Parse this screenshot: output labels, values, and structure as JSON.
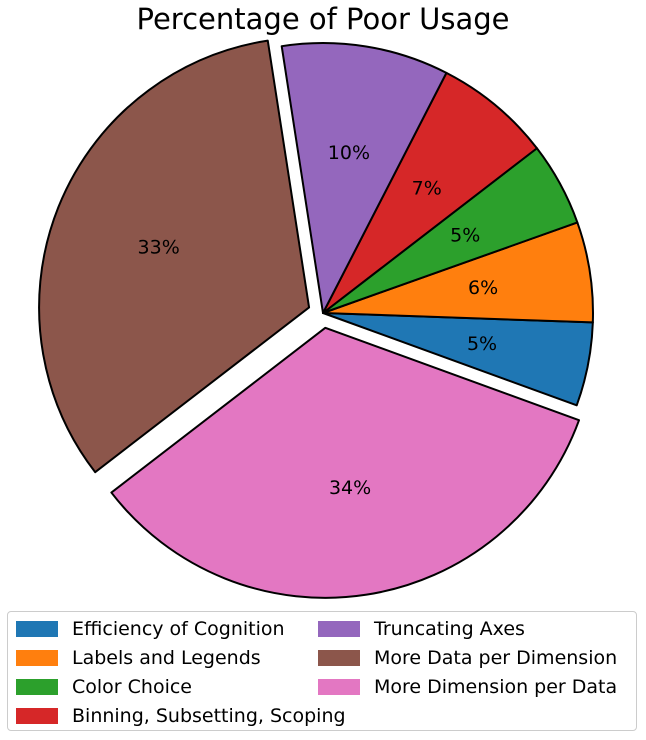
{
  "chart_data": {
    "type": "pie",
    "title": "Percentage of Poor Usage",
    "slices": [
      {
        "label": "Efficiency of Cognition",
        "value": 5,
        "pct_label": "5%",
        "color": "#1f77b4",
        "explode": false
      },
      {
        "label": "Labels and Legends",
        "value": 6,
        "pct_label": "6%",
        "color": "#ff7f0e",
        "explode": false
      },
      {
        "label": "Color Choice",
        "value": 5,
        "pct_label": "5%",
        "color": "#2ca02c",
        "explode": false
      },
      {
        "label": "Binning, Subsetting, Scoping",
        "value": 7,
        "pct_label": "7%",
        "color": "#d62728",
        "explode": false
      },
      {
        "label": "Truncating Axes",
        "value": 10,
        "pct_label": "10%",
        "color": "#9467bd",
        "explode": false
      },
      {
        "label": "More Data per Dimension",
        "value": 33,
        "pct_label": "33%",
        "color": "#8c564b",
        "explode": true
      },
      {
        "label": "More Dimension per Data",
        "value": 34,
        "pct_label": "34%",
        "color": "#e377c2",
        "explode": true
      }
    ],
    "legend_placement": "bottom",
    "legend_columns": 2
  }
}
